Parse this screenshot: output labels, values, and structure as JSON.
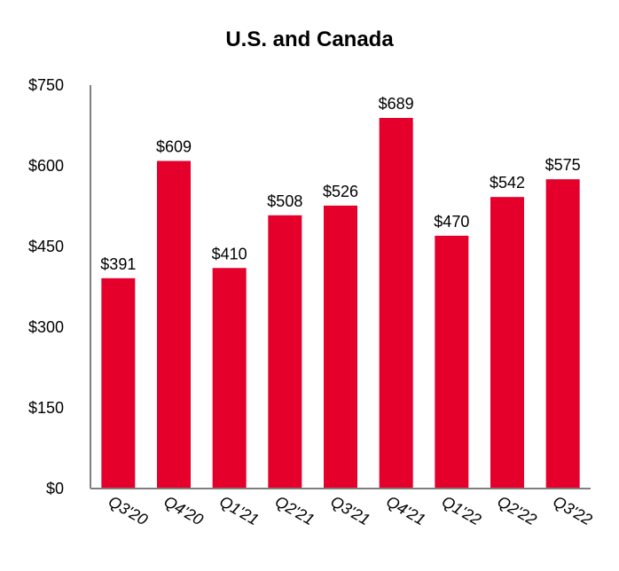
{
  "chart_data": {
    "type": "bar",
    "title": "U.S. and Canada",
    "xlabel": "",
    "ylabel": "",
    "categories": [
      "Q3'20",
      "Q4'20",
      "Q1'21",
      "Q2'21",
      "Q3'21",
      "Q4'21",
      "Q1'22",
      "Q2'22",
      "Q3'22"
    ],
    "values": [
      391,
      609,
      410,
      508,
      526,
      689,
      470,
      542,
      575
    ],
    "value_labels": [
      "$391",
      "$609",
      "$410",
      "$508",
      "$526",
      "$689",
      "$470",
      "$542",
      "$575"
    ],
    "y_ticks": [
      0,
      150,
      300,
      450,
      600,
      750
    ],
    "y_tick_labels": [
      "$0",
      "$150",
      "$300",
      "$450",
      "$600",
      "$750"
    ],
    "ylim": [
      0,
      750
    ],
    "grid": false,
    "legend": "none",
    "bar_color": "#E4002B",
    "axis_color": "#7F7F7F"
  }
}
